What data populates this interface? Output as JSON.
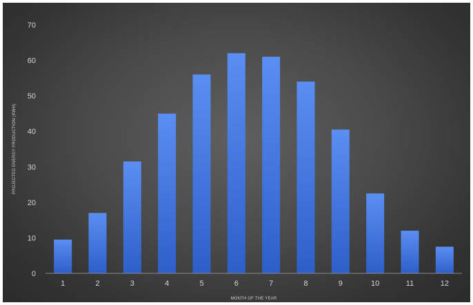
{
  "chart_data": {
    "type": "bar",
    "title": "",
    "xlabel": "MONTH OF THE YEAR",
    "ylabel": "PROJECTED ENERGY PRODUCTION (KWH)",
    "categories": [
      "1",
      "2",
      "3",
      "4",
      "5",
      "6",
      "7",
      "8",
      "9",
      "10",
      "11",
      "12"
    ],
    "values": [
      9.5,
      17,
      31.5,
      45,
      56,
      62,
      61,
      54,
      40.5,
      22.5,
      12,
      7.5
    ],
    "ylim": [
      0,
      70
    ],
    "yticks": [
      0,
      10,
      20,
      30,
      40,
      50,
      60,
      70
    ],
    "grid": false,
    "legend": "none",
    "colors": {
      "bar_top": "#5b8ef2",
      "bar_bottom": "#2e5fc9",
      "background": "#4a4a4a",
      "text": "#d6d6d6",
      "axis": "#8a8a8a"
    }
  }
}
